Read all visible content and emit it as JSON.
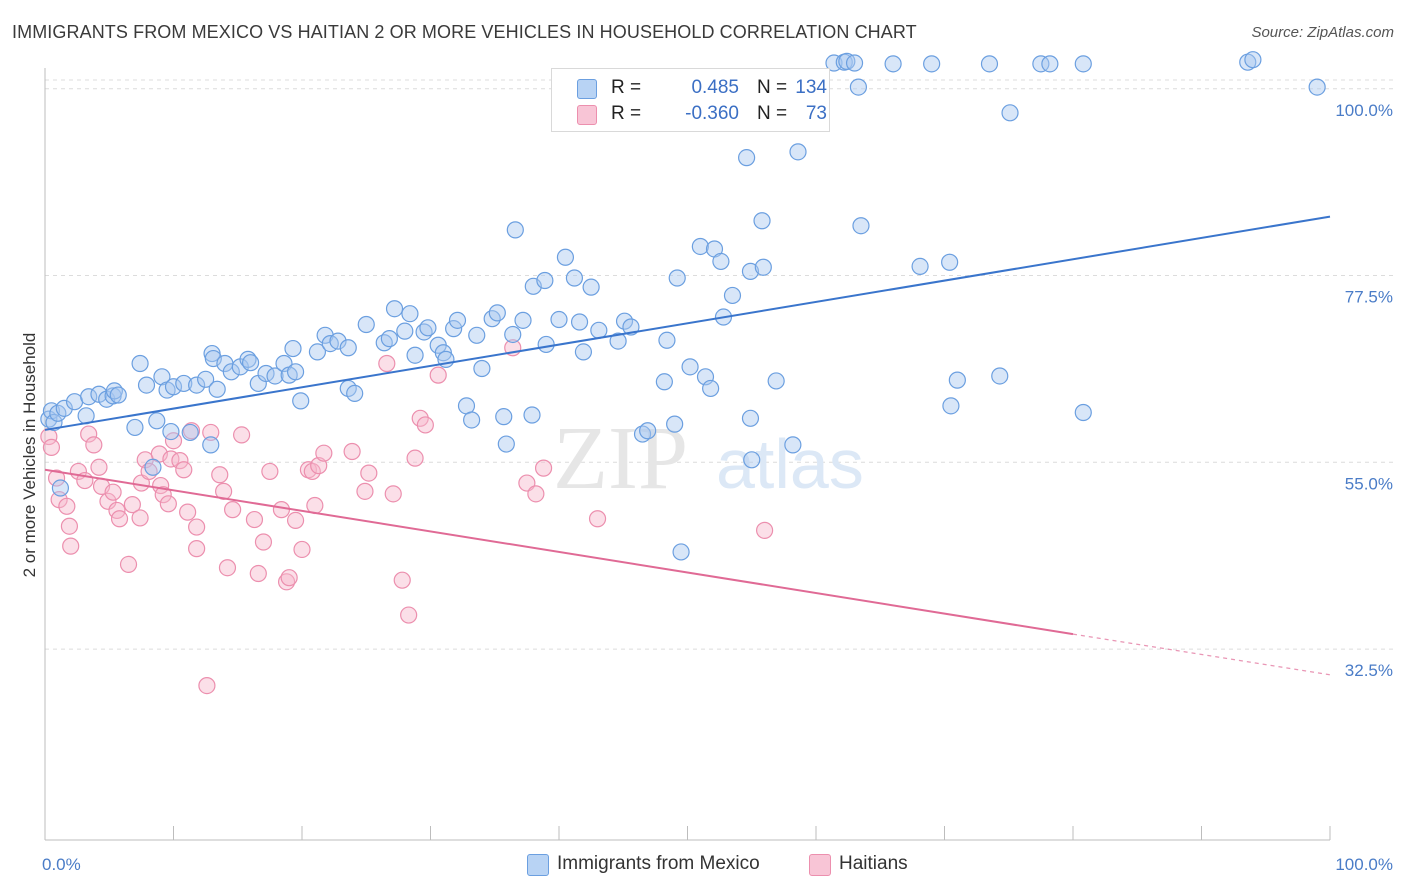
{
  "header": {
    "title": "IMMIGRANTS FROM MEXICO VS HAITIAN 2 OR MORE VEHICLES IN HOUSEHOLD CORRELATION CHART",
    "source": "Source: ZipAtlas.com"
  },
  "watermark": {
    "zip": "ZIP",
    "atlas": "atlas"
  },
  "legend": {
    "rows": [
      {
        "r_label": "R =",
        "r_value": "0.485",
        "n_label": "N =",
        "n_value": "134"
      },
      {
        "r_label": "R =",
        "r_value": "-0.360",
        "n_label": "N =",
        "n_value": "73"
      }
    ]
  },
  "bottom_legend": {
    "items": [
      {
        "label": "Immigrants from Mexico"
      },
      {
        "label": "Haitians"
      }
    ]
  },
  "colors": {
    "blue_fill": "#a8c8f0",
    "blue_stroke": "#6b9fe0",
    "blue_line": "#3a75cc",
    "pink_fill": "#f6b8cc",
    "pink_stroke": "#ec8fae",
    "pink_line": "#e06a95",
    "tick_text": "#4a7cc7",
    "grid": "#dcdcdc"
  },
  "chart_data": {
    "type": "scatter",
    "title": "IMMIGRANTS FROM MEXICO VS HAITIAN 2 OR MORE VEHICLES IN HOUSEHOLD CORRELATION CHART",
    "xlabel": "",
    "ylabel": "2 or more Vehicles in Household",
    "xlim": [
      0,
      100
    ],
    "ylim": [
      9.5,
      102.5
    ],
    "x_tick_labels": [
      "0.0%",
      "100.0%"
    ],
    "y_ticks": [
      32.5,
      55.0,
      77.5,
      100.0
    ],
    "y_tick_labels": [
      "32.5%",
      "55.0%",
      "77.5%",
      "100.0%"
    ],
    "grid": true,
    "legend_position": "top-center",
    "series": [
      {
        "name": "Immigrants from Mexico",
        "r": 0.485,
        "n": 134,
        "trend": {
          "x": [
            0,
            100
          ],
          "y": [
            58.9,
            84.6
          ]
        },
        "points": [
          [
            0.3,
            60.2
          ],
          [
            0.5,
            61.2
          ],
          [
            0.7,
            59.8
          ],
          [
            1.0,
            60.9
          ],
          [
            1.2,
            51.9
          ],
          [
            1.5,
            61.5
          ],
          [
            2.3,
            62.3
          ],
          [
            3.2,
            60.6
          ],
          [
            3.4,
            62.9
          ],
          [
            4.2,
            63.2
          ],
          [
            4.8,
            62.6
          ],
          [
            5.3,
            63.0
          ],
          [
            5.4,
            63.6
          ],
          [
            5.7,
            63.1
          ],
          [
            7.0,
            59.2
          ],
          [
            7.4,
            66.9
          ],
          [
            7.9,
            64.3
          ],
          [
            8.4,
            54.4
          ],
          [
            8.7,
            60.0
          ],
          [
            9.1,
            65.3
          ],
          [
            9.5,
            63.7
          ],
          [
            9.8,
            58.7
          ],
          [
            10.0,
            64.1
          ],
          [
            10.8,
            64.5
          ],
          [
            11.3,
            58.6
          ],
          [
            11.8,
            64.3
          ],
          [
            12.5,
            65.0
          ],
          [
            12.9,
            57.1
          ],
          [
            13.0,
            68.1
          ],
          [
            13.1,
            67.5
          ],
          [
            13.4,
            63.8
          ],
          [
            14.0,
            66.9
          ],
          [
            14.5,
            65.9
          ],
          [
            15.2,
            66.5
          ],
          [
            15.8,
            67.4
          ],
          [
            16.0,
            67.0
          ],
          [
            16.6,
            64.5
          ],
          [
            17.2,
            65.7
          ],
          [
            17.9,
            65.4
          ],
          [
            18.6,
            66.9
          ],
          [
            19.0,
            65.5
          ],
          [
            19.3,
            68.7
          ],
          [
            19.5,
            65.9
          ],
          [
            19.9,
            62.4
          ],
          [
            21.2,
            68.3
          ],
          [
            21.8,
            70.3
          ],
          [
            22.2,
            69.3
          ],
          [
            22.8,
            69.6
          ],
          [
            23.6,
            68.8
          ],
          [
            23.6,
            63.9
          ],
          [
            24.1,
            63.3
          ],
          [
            25.0,
            71.6
          ],
          [
            26.4,
            69.4
          ],
          [
            26.8,
            69.9
          ],
          [
            27.2,
            73.5
          ],
          [
            28.0,
            70.8
          ],
          [
            28.4,
            72.9
          ],
          [
            28.8,
            67.9
          ],
          [
            29.5,
            70.7
          ],
          [
            29.8,
            71.2
          ],
          [
            30.6,
            69.1
          ],
          [
            31.0,
            68.2
          ],
          [
            31.2,
            67.4
          ],
          [
            31.8,
            71.1
          ],
          [
            32.1,
            72.1
          ],
          [
            32.8,
            61.8
          ],
          [
            33.2,
            60.1
          ],
          [
            33.6,
            70.3
          ],
          [
            34.0,
            66.3
          ],
          [
            34.8,
            72.3
          ],
          [
            35.2,
            73.0
          ],
          [
            35.7,
            60.5
          ],
          [
            35.9,
            57.2
          ],
          [
            36.4,
            70.4
          ],
          [
            36.6,
            83.0
          ],
          [
            37.2,
            72.1
          ],
          [
            37.9,
            60.7
          ],
          [
            38.0,
            76.2
          ],
          [
            38.9,
            76.9
          ],
          [
            39.0,
            69.2
          ],
          [
            40.0,
            72.2
          ],
          [
            40.5,
            79.7
          ],
          [
            41.2,
            77.2
          ],
          [
            41.6,
            71.9
          ],
          [
            41.9,
            68.3
          ],
          [
            42.5,
            76.1
          ],
          [
            43.1,
            70.9
          ],
          [
            44.6,
            69.6
          ],
          [
            45.1,
            72.0
          ],
          [
            45.6,
            71.3
          ],
          [
            46.5,
            58.4
          ],
          [
            46.9,
            58.8
          ],
          [
            48.2,
            64.7
          ],
          [
            48.4,
            69.7
          ],
          [
            49.0,
            59.6
          ],
          [
            49.2,
            77.2
          ],
          [
            49.5,
            44.2
          ],
          [
            50.2,
            66.5
          ],
          [
            51.0,
            81.0
          ],
          [
            51.4,
            65.3
          ],
          [
            51.8,
            63.9
          ],
          [
            52.1,
            80.7
          ],
          [
            52.6,
            79.2
          ],
          [
            52.8,
            72.5
          ],
          [
            53.5,
            75.1
          ],
          [
            54.6,
            91.7
          ],
          [
            54.9,
            78.0
          ],
          [
            54.9,
            60.3
          ],
          [
            55.0,
            55.3
          ],
          [
            55.8,
            84.1
          ],
          [
            55.9,
            78.5
          ],
          [
            56.9,
            64.8
          ],
          [
            58.2,
            57.1
          ],
          [
            58.6,
            92.4
          ],
          [
            61.4,
            103.1
          ],
          [
            62.2,
            103.2
          ],
          [
            62.4,
            103.3
          ],
          [
            63.0,
            103.1
          ],
          [
            63.3,
            100.2
          ],
          [
            63.5,
            83.5
          ],
          [
            66.0,
            103.0
          ],
          [
            68.1,
            78.6
          ],
          [
            69.0,
            103.0
          ],
          [
            70.4,
            79.1
          ],
          [
            70.5,
            61.8
          ],
          [
            71.0,
            64.9
          ],
          [
            73.5,
            103.0
          ],
          [
            74.3,
            65.4
          ],
          [
            75.1,
            97.1
          ],
          [
            77.5,
            103.0
          ],
          [
            78.2,
            103.0
          ],
          [
            80.8,
            103.0
          ],
          [
            80.8,
            61.0
          ],
          [
            93.6,
            103.2
          ],
          [
            94.0,
            103.5
          ],
          [
            99.0,
            100.2
          ]
        ]
      },
      {
        "name": "Haitians",
        "r": -0.36,
        "n": 73,
        "trend": {
          "x": [
            0,
            80
          ],
          "y": [
            54.1,
            34.3
          ]
        },
        "trend_dashed": {
          "x": [
            80,
            100
          ],
          "y": [
            34.3,
            29.4
          ]
        },
        "points": [
          [
            0.3,
            58.1
          ],
          [
            0.5,
            56.8
          ],
          [
            0.9,
            53.1
          ],
          [
            1.1,
            50.5
          ],
          [
            1.7,
            49.7
          ],
          [
            1.9,
            47.3
          ],
          [
            2.0,
            44.9
          ],
          [
            2.6,
            53.9
          ],
          [
            3.1,
            52.8
          ],
          [
            3.4,
            58.4
          ],
          [
            3.8,
            57.1
          ],
          [
            4.2,
            54.4
          ],
          [
            4.4,
            52.1
          ],
          [
            4.9,
            50.3
          ],
          [
            5.3,
            51.4
          ],
          [
            5.6,
            49.2
          ],
          [
            5.8,
            48.2
          ],
          [
            6.5,
            42.7
          ],
          [
            6.8,
            49.9
          ],
          [
            7.4,
            48.3
          ],
          [
            7.5,
            52.5
          ],
          [
            7.8,
            55.3
          ],
          [
            8.1,
            53.9
          ],
          [
            8.9,
            56.0
          ],
          [
            9.0,
            52.2
          ],
          [
            9.2,
            51.1
          ],
          [
            9.6,
            50.0
          ],
          [
            9.8,
            55.4
          ],
          [
            10.0,
            57.6
          ],
          [
            10.5,
            55.2
          ],
          [
            10.8,
            54.1
          ],
          [
            11.1,
            49.0
          ],
          [
            11.4,
            58.8
          ],
          [
            11.8,
            47.2
          ],
          [
            11.8,
            44.6
          ],
          [
            12.6,
            28.1
          ],
          [
            12.9,
            58.6
          ],
          [
            13.6,
            53.5
          ],
          [
            13.9,
            51.5
          ],
          [
            14.2,
            42.3
          ],
          [
            14.6,
            49.3
          ],
          [
            15.3,
            58.3
          ],
          [
            16.3,
            48.1
          ],
          [
            16.6,
            41.6
          ],
          [
            17.0,
            45.4
          ],
          [
            17.5,
            53.9
          ],
          [
            18.4,
            49.3
          ],
          [
            18.8,
            40.6
          ],
          [
            19.0,
            41.1
          ],
          [
            19.5,
            48.0
          ],
          [
            20.0,
            44.5
          ],
          [
            20.5,
            54.1
          ],
          [
            20.8,
            53.9
          ],
          [
            21.0,
            49.8
          ],
          [
            21.3,
            54.6
          ],
          [
            21.7,
            56.1
          ],
          [
            23.9,
            56.3
          ],
          [
            24.9,
            51.5
          ],
          [
            25.2,
            53.7
          ],
          [
            26.6,
            66.9
          ],
          [
            27.1,
            51.2
          ],
          [
            27.8,
            40.8
          ],
          [
            28.3,
            36.6
          ],
          [
            28.8,
            55.5
          ],
          [
            29.2,
            60.3
          ],
          [
            29.6,
            59.5
          ],
          [
            30.6,
            65.5
          ],
          [
            36.4,
            68.8
          ],
          [
            37.5,
            52.5
          ],
          [
            38.2,
            51.2
          ],
          [
            38.8,
            54.3
          ],
          [
            43.0,
            48.2
          ],
          [
            56.0,
            46.8
          ]
        ]
      }
    ]
  }
}
